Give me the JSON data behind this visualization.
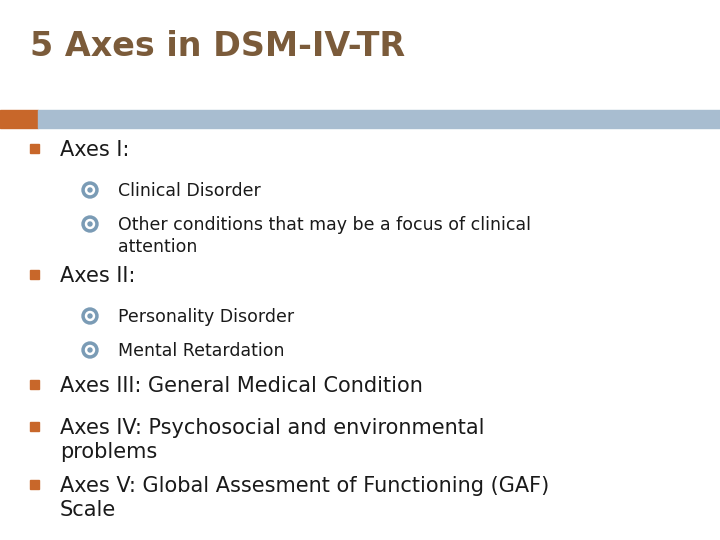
{
  "title": "5 Axes in DSM-IV-TR",
  "title_color": "#7B5B3A",
  "title_fontsize": 24,
  "title_weight": "bold",
  "background_color": "#FFFFFF",
  "header_bar_color": "#A8BDD0",
  "header_bar_left_color": "#C8672A",
  "bullet_square_color": "#C8672A",
  "sub_bullet_color": "#7A9BB5",
  "text_color": "#1A1A1A",
  "level1_fontsize": 15,
  "level2_fontsize": 12.5,
  "items": [
    {
      "level": 1,
      "text": "Axes I:"
    },
    {
      "level": 2,
      "text": "Clinical Disorder"
    },
    {
      "level": 2,
      "text": "Other conditions that may be a focus of clinical\nattention"
    },
    {
      "level": 1,
      "text": "Axes II:"
    },
    {
      "level": 2,
      "text": "Personality Disorder"
    },
    {
      "level": 2,
      "text": "Mental Retardation"
    },
    {
      "level": 1,
      "text": "Axes III: General Medical Condition"
    },
    {
      "level": 1,
      "text": "Axes IV: Psychosocial and environmental\nproblems"
    },
    {
      "level": 1,
      "text": "Axes V: Global Assesment of Functioning (GAF)\nScale"
    }
  ]
}
